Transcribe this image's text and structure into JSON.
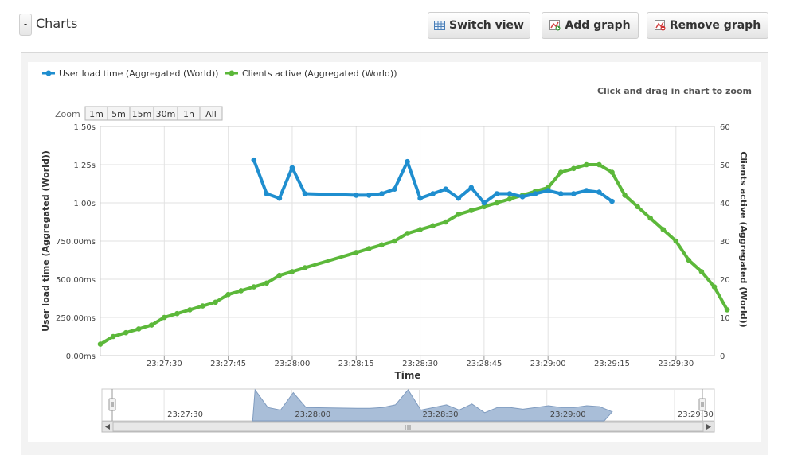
{
  "header": {
    "collapse_label": "-",
    "title": "Charts",
    "switch_view_label": "Switch view",
    "add_graph_label": "Add graph",
    "remove_graph_label": "Remove graph"
  },
  "hint": "Click and drag in chart to zoom",
  "zoom": {
    "label": "Zoom",
    "options": [
      "1m",
      "5m",
      "15m",
      "30m",
      "1h",
      "All"
    ]
  },
  "colors": {
    "series_blue": "#1f8ecf",
    "series_green": "#5cb83a",
    "navigator_fill": "#a9bed8"
  },
  "chart_data": {
    "type": "line",
    "xlabel": "Time",
    "x_ticks": [
      "23:27:30",
      "23:27:45",
      "23:28:00",
      "23:28:15",
      "23:28:30",
      "23:28:45",
      "23:29:00",
      "23:29:15",
      "23:29:30"
    ],
    "xlim": [
      "23:27:15",
      "23:29:39"
    ],
    "y_left": {
      "label": "User load time (Aggregated (World))",
      "ticks": [
        "0.00ms",
        "250.00ms",
        "500.00ms",
        "750.00ms",
        "1.00s",
        "1.25s",
        "1.50s"
      ],
      "range": [
        0,
        1.5
      ],
      "unit": "s"
    },
    "y_right": {
      "label": "Clients active (Aggregated (World))",
      "ticks": [
        "0",
        "10",
        "20",
        "30",
        "40",
        "50",
        "60"
      ],
      "range": [
        0,
        60
      ]
    },
    "legend_position": "top-left",
    "series": [
      {
        "name": "User load time (Aggregated (World))",
        "axis": "left",
        "points": [
          [
            "23:27:51",
            1.28
          ],
          [
            "23:27:54",
            1.06
          ],
          [
            "23:27:57",
            1.03
          ],
          [
            "23:28:00",
            1.23
          ],
          [
            "23:28:03",
            1.06
          ],
          [
            "23:28:15",
            1.05
          ],
          [
            "23:28:18",
            1.05
          ],
          [
            "23:28:21",
            1.06
          ],
          [
            "23:28:24",
            1.09
          ],
          [
            "23:28:27",
            1.27
          ],
          [
            "23:28:30",
            1.03
          ],
          [
            "23:28:33",
            1.06
          ],
          [
            "23:28:36",
            1.09
          ],
          [
            "23:28:39",
            1.03
          ],
          [
            "23:28:42",
            1.1
          ],
          [
            "23:28:45",
            1.0
          ],
          [
            "23:28:48",
            1.06
          ],
          [
            "23:28:51",
            1.06
          ],
          [
            "23:28:54",
            1.04
          ],
          [
            "23:28:57",
            1.06
          ],
          [
            "23:29:00",
            1.08
          ],
          [
            "23:29:03",
            1.06
          ],
          [
            "23:29:06",
            1.06
          ],
          [
            "23:29:09",
            1.08
          ],
          [
            "23:29:12",
            1.07
          ],
          [
            "23:29:15",
            1.01
          ]
        ]
      },
      {
        "name": "Clients active (Aggregated (World))",
        "axis": "right",
        "points": [
          [
            "23:27:15",
            3
          ],
          [
            "23:27:18",
            5
          ],
          [
            "23:27:21",
            6
          ],
          [
            "23:27:24",
            7
          ],
          [
            "23:27:27",
            8
          ],
          [
            "23:27:30",
            10
          ],
          [
            "23:27:33",
            11
          ],
          [
            "23:27:36",
            12
          ],
          [
            "23:27:39",
            13
          ],
          [
            "23:27:42",
            14
          ],
          [
            "23:27:45",
            16
          ],
          [
            "23:27:48",
            17
          ],
          [
            "23:27:51",
            18
          ],
          [
            "23:27:54",
            19
          ],
          [
            "23:27:57",
            21
          ],
          [
            "23:28:00",
            22
          ],
          [
            "23:28:03",
            23
          ],
          [
            "23:28:15",
            27
          ],
          [
            "23:28:18",
            28
          ],
          [
            "23:28:21",
            29
          ],
          [
            "23:28:24",
            30
          ],
          [
            "23:28:27",
            32
          ],
          [
            "23:28:30",
            33
          ],
          [
            "23:28:33",
            34
          ],
          [
            "23:28:36",
            35
          ],
          [
            "23:28:39",
            37
          ],
          [
            "23:28:42",
            38
          ],
          [
            "23:28:45",
            39
          ],
          [
            "23:28:48",
            40
          ],
          [
            "23:28:51",
            41
          ],
          [
            "23:28:54",
            42
          ],
          [
            "23:28:57",
            43
          ],
          [
            "23:29:00",
            44
          ],
          [
            "23:29:03",
            48
          ],
          [
            "23:29:06",
            49
          ],
          [
            "23:29:09",
            50
          ],
          [
            "23:29:12",
            50
          ],
          [
            "23:29:15",
            48
          ],
          [
            "23:29:18",
            42
          ],
          [
            "23:29:21",
            39
          ],
          [
            "23:29:24",
            36
          ],
          [
            "23:29:27",
            33
          ],
          [
            "23:29:30",
            30
          ],
          [
            "23:29:33",
            25
          ],
          [
            "23:29:36",
            22
          ],
          [
            "23:29:39",
            18
          ],
          [
            "23:29:42",
            12
          ]
        ]
      }
    ]
  }
}
